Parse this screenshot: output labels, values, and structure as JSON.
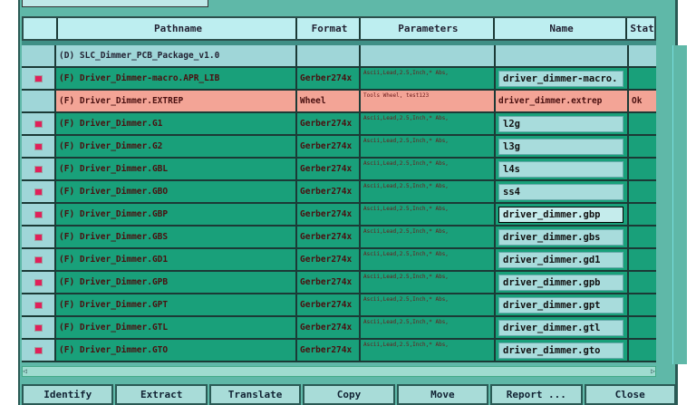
{
  "columns": [
    "Pathname",
    "Format",
    "Parameters",
    "Name",
    "Stat"
  ],
  "rows": [
    {
      "type": "d",
      "flag": false,
      "path": "(D) SLC_Dimmer_PCB_Package_v1.0",
      "format": "",
      "params": "",
      "name": "",
      "stat": ""
    },
    {
      "type": "g",
      "flag": true,
      "path": "(F) Driver_Dimmer-macro.APR_LIB",
      "format": "Gerber274x",
      "params": "Ascii,Lead,2.5,Inch,* Abs,",
      "name": "driver_dimmer-macro.",
      "stat": ""
    },
    {
      "type": "p",
      "flag": false,
      "path": "(F) Driver_Dimmer.EXTREP",
      "format": "Wheel",
      "params": "Tools Wheel, test123",
      "name": "driver_dimmer.extrep",
      "stat": "Ok"
    },
    {
      "type": "g",
      "flag": true,
      "path": "(F) Driver_Dimmer.G1",
      "format": "Gerber274x",
      "params": "Ascii,Lead,2.5,Inch,* Abs,",
      "name": "l2g",
      "stat": ""
    },
    {
      "type": "g",
      "flag": true,
      "path": "(F) Driver_Dimmer.G2",
      "format": "Gerber274x",
      "params": "Ascii,Lead,2.5,Inch,* Abs,",
      "name": "l3g",
      "stat": ""
    },
    {
      "type": "g",
      "flag": true,
      "path": "(F) Driver_Dimmer.GBL",
      "format": "Gerber274x",
      "params": "Ascii,Lead,2.5,Inch,* Abs,",
      "name": "l4s",
      "stat": ""
    },
    {
      "type": "g",
      "flag": true,
      "path": "(F) Driver_Dimmer.GBO",
      "format": "Gerber274x",
      "params": "Ascii,Lead,2.5,Inch,* Abs,",
      "name": "ss4",
      "stat": ""
    },
    {
      "type": "g",
      "flag": true,
      "path": "(F) Driver_Dimmer.GBP",
      "format": "Gerber274x",
      "params": "Ascii,Lead,2.5,Inch,* Abs,",
      "name": "driver_dimmer.gbp",
      "stat": "",
      "active": true
    },
    {
      "type": "g",
      "flag": true,
      "path": "(F) Driver_Dimmer.GBS",
      "format": "Gerber274x",
      "params": "Ascii,Lead,2.5,Inch,* Abs,",
      "name": "driver_dimmer.gbs",
      "stat": ""
    },
    {
      "type": "g",
      "flag": true,
      "path": "(F) Driver_Dimmer.GD1",
      "format": "Gerber274x",
      "params": "Ascii,Lead,2.5,Inch,* Abs,",
      "name": "driver_dimmer.gd1",
      "stat": ""
    },
    {
      "type": "g",
      "flag": true,
      "path": "(F) Driver_Dimmer.GPB",
      "format": "Gerber274x",
      "params": "Ascii,Lead,2.5,Inch,* Abs,",
      "name": "driver_dimmer.gpb",
      "stat": ""
    },
    {
      "type": "g",
      "flag": true,
      "path": "(F) Driver_Dimmer.GPT",
      "format": "Gerber274x",
      "params": "Ascii,Lead,2.5,Inch,* Abs,",
      "name": "driver_dimmer.gpt",
      "stat": ""
    },
    {
      "type": "g",
      "flag": true,
      "path": "(F) Driver_Dimmer.GTL",
      "format": "Gerber274x",
      "params": "Ascii,Lead,2.5,Inch,* Abs,",
      "name": "driver_dimmer.gtl",
      "stat": ""
    },
    {
      "type": "g",
      "flag": true,
      "path": "(F) Driver_Dimmer.GTO",
      "format": "Gerber274x",
      "params": "Ascii,Lead,2.5,Inch,* Abs,",
      "name": "driver_dimmer.gto",
      "stat": ""
    }
  ],
  "buttons": [
    "Identify",
    "Extract",
    "Translate",
    "Copy",
    "Move",
    "Report ...",
    "Close"
  ],
  "colors": {
    "green_row": "#19a07a",
    "pink_row": "#f3a496",
    "header": "#bdeef0",
    "flag": "#e0205a"
  }
}
